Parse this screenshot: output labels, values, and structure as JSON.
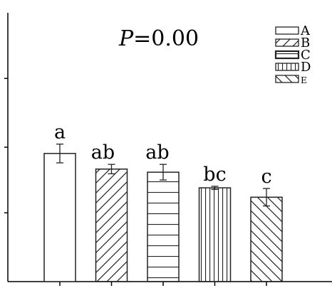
{
  "chart_data": {
    "type": "bar",
    "categories": [
      "A",
      "B",
      "C",
      "D",
      "E"
    ],
    "values": [
      4.1,
      3.6,
      3.5,
      3.0,
      2.7
    ],
    "errors": [
      0.3,
      0.15,
      0.25,
      0.05,
      0.28
    ],
    "significance": [
      "a",
      "ab",
      "ab",
      "bc",
      "c"
    ],
    "patterns": [
      "none",
      "diagonal-up",
      "horizontal",
      "vertical",
      "diagonal-down"
    ],
    "annotation": "P=0.00",
    "ylim": [
      0,
      8.6
    ],
    "legend": [
      "A",
      "B",
      "C",
      "D",
      "E"
    ],
    "legend_position": "top-right",
    "grid": false
  },
  "annotation_parts": {
    "italic": "P",
    "rest": "=0.00"
  }
}
